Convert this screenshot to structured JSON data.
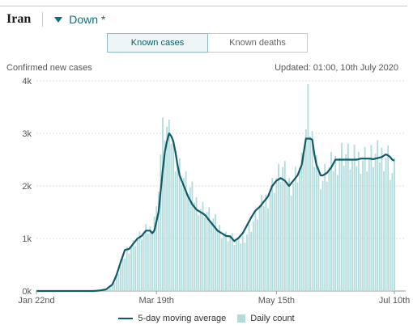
{
  "header": {
    "country": "Iran",
    "trend_label": "Down *"
  },
  "tabs": [
    {
      "label": "Known cases",
      "active": true
    },
    {
      "label": "Known deaths",
      "active": false
    }
  ],
  "subtitle": "Confirmed new cases",
  "updated": "Updated: 01:00, 10th July 2020",
  "legend": {
    "line_label": "5-day moving average",
    "bar_label": "Daily count"
  },
  "colors": {
    "accent": "#0e6f7a",
    "line": "#0e5a66",
    "bars": "#b2dcdc",
    "grid": "#dddddd"
  },
  "chart_data": {
    "type": "bar",
    "title": "",
    "ylabel": "Confirmed new cases",
    "xlabel": "",
    "date_start": "Jan 22nd",
    "date_end": "Jul 10th",
    "ylim": [
      0,
      4000
    ],
    "y_ticks": [
      {
        "value": 0,
        "label": "0k"
      },
      {
        "value": 1000,
        "label": "1k"
      },
      {
        "value": 2000,
        "label": "2k"
      },
      {
        "value": 3000,
        "label": "3k"
      },
      {
        "value": 4000,
        "label": "4k"
      }
    ],
    "x_ticks": [
      {
        "day": 0,
        "label": "Jan 22nd"
      },
      {
        "day": 57,
        "label": "Mar 19th"
      },
      {
        "day": 114,
        "label": "May 15th"
      },
      {
        "day": 170,
        "label": "Jul 10th"
      }
    ],
    "grid": true,
    "legend_position": "bottom",
    "series": [
      {
        "name": "Daily count",
        "kind": "bar",
        "anchors": [
          [
            0,
            0
          ],
          [
            28,
            0
          ],
          [
            33,
            10
          ],
          [
            35,
            50
          ],
          [
            37,
            160
          ],
          [
            38,
            250
          ],
          [
            40,
            450
          ],
          [
            42,
            650
          ],
          [
            43,
            800
          ],
          [
            44,
            820
          ],
          [
            46,
            900
          ],
          [
            48,
            1000
          ],
          [
            50,
            1060
          ],
          [
            52,
            1130
          ],
          [
            54,
            1170
          ],
          [
            55,
            1250
          ],
          [
            56,
            1450
          ],
          [
            57,
            1500
          ],
          [
            58,
            2100
          ],
          [
            59,
            2600
          ],
          [
            60,
            3000
          ],
          [
            61,
            3100
          ],
          [
            62,
            3050
          ],
          [
            63,
            2900
          ],
          [
            64,
            2950
          ],
          [
            65,
            2700
          ],
          [
            66,
            2600
          ],
          [
            67,
            2450
          ],
          [
            68,
            2350
          ],
          [
            70,
            2150
          ],
          [
            72,
            2000
          ],
          [
            74,
            1850
          ],
          [
            76,
            1700
          ],
          [
            78,
            1600
          ],
          [
            80,
            1550
          ],
          [
            82,
            1450
          ],
          [
            84,
            1350
          ],
          [
            86,
            1250
          ],
          [
            88,
            1150
          ],
          [
            90,
            1050
          ],
          [
            92,
            1050
          ],
          [
            94,
            950
          ],
          [
            96,
            900
          ],
          [
            98,
            1000
          ],
          [
            100,
            1100
          ],
          [
            102,
            1250
          ],
          [
            104,
            1400
          ],
          [
            106,
            1550
          ],
          [
            108,
            1700
          ],
          [
            110,
            1800
          ],
          [
            112,
            2000
          ],
          [
            114,
            2150
          ],
          [
            116,
            2250
          ],
          [
            117,
            2300
          ],
          [
            118,
            2200
          ],
          [
            119,
            2150
          ],
          [
            120,
            2050
          ],
          [
            122,
            2100
          ],
          [
            124,
            2300
          ],
          [
            126,
            2400
          ],
          [
            127,
            2800
          ],
          [
            128,
            3000
          ],
          [
            129,
            3500
          ],
          [
            130,
            3100
          ],
          [
            131,
            2900
          ],
          [
            132,
            2700
          ],
          [
            133,
            2650
          ],
          [
            134,
            2200
          ],
          [
            135,
            2150
          ],
          [
            136,
            2100
          ],
          [
            137,
            2200
          ],
          [
            138,
            2250
          ],
          [
            140,
            2350
          ],
          [
            142,
            2450
          ],
          [
            144,
            2600
          ],
          [
            146,
            2650
          ],
          [
            148,
            2550
          ],
          [
            150,
            2450
          ],
          [
            152,
            2500
          ],
          [
            154,
            2550
          ],
          [
            156,
            2550
          ],
          [
            158,
            2500
          ],
          [
            160,
            2550
          ],
          [
            162,
            2550
          ],
          [
            164,
            2600
          ],
          [
            166,
            2600
          ],
          [
            167,
            2580
          ],
          [
            168,
            2350
          ],
          [
            169,
            2250
          ],
          [
            170,
            2300
          ]
        ]
      },
      {
        "name": "5-day moving average",
        "kind": "line",
        "anchors": [
          [
            0,
            0
          ],
          [
            27,
            0
          ],
          [
            30,
            10
          ],
          [
            33,
            30
          ],
          [
            36,
            120
          ],
          [
            38,
            300
          ],
          [
            40,
            550
          ],
          [
            42,
            780
          ],
          [
            44,
            800
          ],
          [
            46,
            900
          ],
          [
            48,
            1000
          ],
          [
            50,
            1050
          ],
          [
            52,
            1150
          ],
          [
            54,
            1150
          ],
          [
            55,
            1100
          ],
          [
            56,
            1150
          ],
          [
            58,
            1500
          ],
          [
            59,
            1900
          ],
          [
            60,
            2300
          ],
          [
            61,
            2650
          ],
          [
            62,
            2850
          ],
          [
            63,
            3000
          ],
          [
            64,
            2950
          ],
          [
            65,
            2850
          ],
          [
            66,
            2650
          ],
          [
            67,
            2400
          ],
          [
            68,
            2200
          ],
          [
            70,
            2000
          ],
          [
            72,
            1800
          ],
          [
            74,
            1650
          ],
          [
            76,
            1550
          ],
          [
            78,
            1500
          ],
          [
            80,
            1450
          ],
          [
            82,
            1350
          ],
          [
            84,
            1250
          ],
          [
            86,
            1150
          ],
          [
            88,
            1100
          ],
          [
            90,
            1050
          ],
          [
            92,
            1040
          ],
          [
            94,
            950
          ],
          [
            96,
            1010
          ],
          [
            98,
            1100
          ],
          [
            100,
            1250
          ],
          [
            102,
            1400
          ],
          [
            104,
            1530
          ],
          [
            106,
            1600
          ],
          [
            108,
            1700
          ],
          [
            110,
            1800
          ],
          [
            112,
            2000
          ],
          [
            114,
            2100
          ],
          [
            116,
            2150
          ],
          [
            118,
            2100
          ],
          [
            120,
            2000
          ],
          [
            122,
            2100
          ],
          [
            124,
            2200
          ],
          [
            126,
            2400
          ],
          [
            128,
            2900
          ],
          [
            130,
            2900
          ],
          [
            131,
            2880
          ],
          [
            132,
            2600
          ],
          [
            133,
            2400
          ],
          [
            134,
            2300
          ],
          [
            135,
            2200
          ],
          [
            136,
            2200
          ],
          [
            138,
            2250
          ],
          [
            140,
            2350
          ],
          [
            142,
            2500
          ],
          [
            144,
            2500
          ],
          [
            146,
            2500
          ],
          [
            148,
            2500
          ],
          [
            150,
            2500
          ],
          [
            152,
            2500
          ],
          [
            154,
            2520
          ],
          [
            156,
            2520
          ],
          [
            158,
            2520
          ],
          [
            160,
            2510
          ],
          [
            162,
            2530
          ],
          [
            164,
            2550
          ],
          [
            166,
            2600
          ],
          [
            167,
            2580
          ],
          [
            168,
            2550
          ],
          [
            169,
            2500
          ],
          [
            170,
            2480
          ]
        ]
      }
    ]
  }
}
